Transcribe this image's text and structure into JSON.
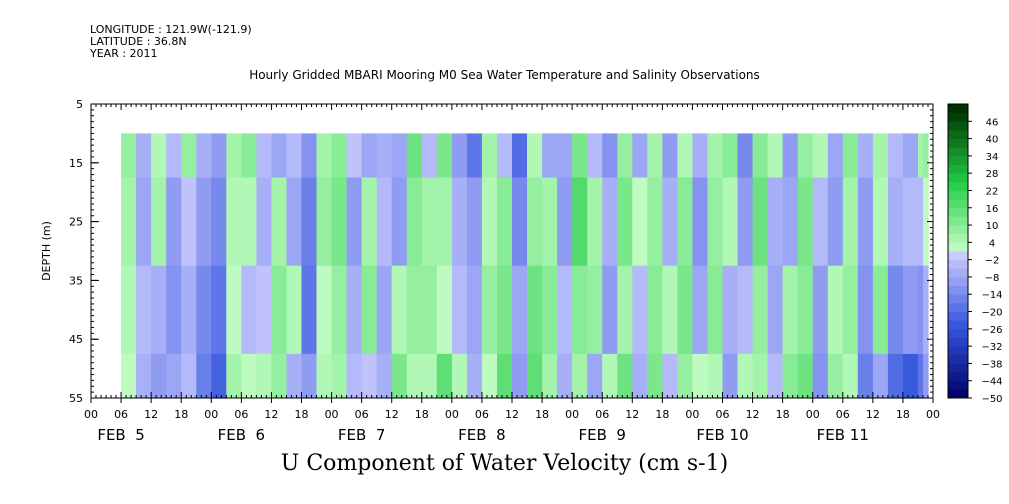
{
  "header": {
    "longitude": "LONGITUDE : 121.9W(-121.9)",
    "latitude": "LATITUDE : 36.8N",
    "year": "YEAR : 2011"
  },
  "title": "Hourly Gridded MBARI Mooring M0 Sea Water Temperature and Salinity Observations",
  "caption": "U Component of Water Velocity (cm s-1)",
  "chart_data": {
    "type": "heatmap",
    "title": "Hourly Gridded MBARI Mooring M0 Sea Water Temperature and Salinity Observations",
    "xlabel": "",
    "ylabel": "DEPTH (m)",
    "colorbar_label": "U Component of Water Velocity (cm s-1)",
    "x_range_hours": [
      0,
      168
    ],
    "data_start_hour": 6,
    "y_range": [
      5,
      55
    ],
    "y_inverted": true,
    "data_depth_range": [
      10,
      55
    ],
    "y_ticks": [
      "5",
      "15",
      "25",
      "35",
      "45",
      "55"
    ],
    "x_hour_ticks": [
      "00",
      "06",
      "12",
      "18",
      "00",
      "06",
      "12",
      "18",
      "00",
      "06",
      "12",
      "18",
      "00",
      "06",
      "12",
      "18",
      "00",
      "06",
      "12",
      "18",
      "00",
      "06",
      "12",
      "18",
      "00",
      "06",
      "12",
      "18",
      "00"
    ],
    "x_day_labels": [
      "FEB  5",
      "FEB  6",
      "FEB  7",
      "FEB  8",
      "FEB  9",
      "FEB 10",
      "FEB 11"
    ],
    "colorbar_levels": [
      -50,
      -44,
      -38,
      -32,
      -26,
      -20,
      -14,
      -8,
      -2,
      4,
      10,
      16,
      22,
      28,
      34,
      40,
      46
    ],
    "colorbar_range": [
      -50,
      52
    ],
    "colorbar_colors": {
      "low": "#000066",
      "mid_low": "#3355dd",
      "near_zero_neg": "#ccccff",
      "near_zero_pos": "#ccffcc",
      "mid_high": "#22cc44",
      "high": "#003300"
    },
    "time_profile": [
      {
        "hour": 6,
        "u": [
          8,
          6,
          4,
          2
        ]
      },
      {
        "hour": 9,
        "u": [
          -6,
          -8,
          -4,
          -6
        ]
      },
      {
        "hour": 12,
        "u": [
          4,
          6,
          -6,
          -10
        ]
      },
      {
        "hour": 15,
        "u": [
          -4,
          -10,
          -12,
          -8
        ]
      },
      {
        "hour": 18,
        "u": [
          8,
          -2,
          -6,
          -4
        ]
      },
      {
        "hour": 21,
        "u": [
          -6,
          -10,
          -14,
          -16
        ]
      },
      {
        "hour": 24,
        "u": [
          -10,
          -14,
          -18,
          -22
        ]
      },
      {
        "hour": 27,
        "u": [
          6,
          4,
          2,
          6
        ]
      },
      {
        "hour": 30,
        "u": [
          10,
          4,
          -4,
          2
        ]
      },
      {
        "hour": 33,
        "u": [
          -4,
          -6,
          -2,
          4
        ]
      },
      {
        "hour": 36,
        "u": [
          -8,
          6,
          10,
          8
        ]
      },
      {
        "hour": 39,
        "u": [
          -4,
          -8,
          4,
          -6
        ]
      },
      {
        "hour": 42,
        "u": [
          -12,
          -16,
          -18,
          -10
        ]
      },
      {
        "hour": 45,
        "u": [
          6,
          8,
          2,
          4
        ]
      },
      {
        "hour": 48,
        "u": [
          10,
          12,
          8,
          6
        ]
      },
      {
        "hour": 51,
        "u": [
          -2,
          -10,
          -6,
          -4
        ]
      },
      {
        "hour": 54,
        "u": [
          -8,
          6,
          10,
          -2
        ]
      },
      {
        "hour": 57,
        "u": [
          -6,
          -4,
          -8,
          -6
        ]
      },
      {
        "hour": 60,
        "u": [
          -8,
          -10,
          4,
          12
        ]
      },
      {
        "hour": 63,
        "u": [
          14,
          10,
          8,
          4
        ]
      },
      {
        "hour": 66,
        "u": [
          -4,
          6,
          8,
          4
        ]
      },
      {
        "hour": 69,
        "u": [
          12,
          6,
          2,
          16
        ]
      },
      {
        "hour": 72,
        "u": [
          -10,
          -6,
          -4,
          4
        ]
      },
      {
        "hour": 75,
        "u": [
          -18,
          -10,
          -8,
          -6
        ]
      },
      {
        "hour": 78,
        "u": [
          6,
          4,
          8,
          2
        ]
      },
      {
        "hour": 81,
        "u": [
          -4,
          10,
          12,
          16
        ]
      },
      {
        "hour": 84,
        "u": [
          -20,
          -14,
          -8,
          -10
        ]
      },
      {
        "hour": 87,
        "u": [
          4,
          8,
          14,
          16
        ]
      },
      {
        "hour": 90,
        "u": [
          -8,
          6,
          10,
          6
        ]
      },
      {
        "hour": 93,
        "u": [
          -8,
          -10,
          -4,
          -6
        ]
      },
      {
        "hour": 96,
        "u": [
          12,
          18,
          10,
          6
        ]
      },
      {
        "hour": 99,
        "u": [
          -4,
          6,
          8,
          -8
        ]
      },
      {
        "hour": 102,
        "u": [
          -12,
          -6,
          -10,
          4
        ]
      },
      {
        "hour": 105,
        "u": [
          8,
          12,
          6,
          14
        ]
      },
      {
        "hour": 108,
        "u": [
          -8,
          2,
          -4,
          -6
        ]
      },
      {
        "hour": 111,
        "u": [
          6,
          8,
          10,
          12
        ]
      },
      {
        "hour": 114,
        "u": [
          -10,
          -6,
          4,
          -4
        ]
      },
      {
        "hour": 117,
        "u": [
          4,
          10,
          12,
          8
        ]
      },
      {
        "hour": 120,
        "u": [
          -6,
          -12,
          -8,
          2
        ]
      },
      {
        "hour": 123,
        "u": [
          6,
          8,
          10,
          4
        ]
      },
      {
        "hour": 126,
        "u": [
          10,
          4,
          -6,
          -10
        ]
      },
      {
        "hour": 129,
        "u": [
          -14,
          -10,
          -4,
          4
        ]
      },
      {
        "hour": 132,
        "u": [
          10,
          14,
          8,
          6
        ]
      },
      {
        "hour": 135,
        "u": [
          4,
          -6,
          -8,
          -4
        ]
      },
      {
        "hour": 138,
        "u": [
          -10,
          -8,
          6,
          10
        ]
      },
      {
        "hour": 141,
        "u": [
          8,
          12,
          10,
          14
        ]
      },
      {
        "hour": 144,
        "u": [
          4,
          -4,
          -10,
          -12
        ]
      },
      {
        "hour": 147,
        "u": [
          -8,
          -10,
          4,
          8
        ]
      },
      {
        "hour": 150,
        "u": [
          10,
          6,
          8,
          4
        ]
      },
      {
        "hour": 153,
        "u": [
          -6,
          -10,
          -12,
          -16
        ]
      },
      {
        "hour": 156,
        "u": [
          6,
          4,
          10,
          -8
        ]
      },
      {
        "hour": 159,
        "u": [
          -4,
          -6,
          -14,
          -20
        ]
      },
      {
        "hour": 162,
        "u": [
          -8,
          -4,
          -10,
          -24
        ]
      },
      {
        "hour": 165,
        "u": [
          6,
          -4,
          -12,
          -18
        ]
      },
      {
        "hour": 166,
        "u": [
          8,
          2,
          -6,
          -10
        ]
      }
    ],
    "profile_depths_m": [
      10,
      25,
      40,
      55
    ],
    "grid": false,
    "legend": "colorbar-right"
  }
}
